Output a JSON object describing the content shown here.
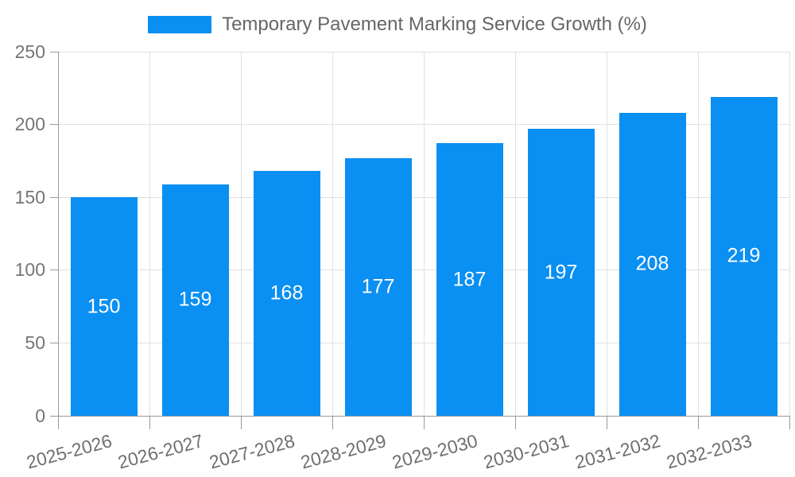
{
  "legend": {
    "label": "Temporary Pavement Marking Service Growth (%)"
  },
  "chart_data": {
    "type": "bar",
    "title": "Temporary Pavement Marking Service Growth (%)",
    "categories": [
      "2025-2026",
      "2026-2027",
      "2027-2028",
      "2028-2029",
      "2029-2030",
      "2030-2031",
      "2031-2032",
      "2032-2033"
    ],
    "values": [
      150,
      159,
      168,
      177,
      187,
      197,
      208,
      219
    ],
    "xlabel": "",
    "ylabel": "",
    "ylim": [
      0,
      250
    ],
    "yticks": [
      0,
      50,
      100,
      150,
      200,
      250
    ],
    "grid": true,
    "legend_position": "top-center",
    "x_label_rotation_deg": -15,
    "colors": {
      "bar": "#0A8FF2",
      "value_label": "#FFFFFF",
      "axis": "#999999",
      "grid": "#E0E0E0",
      "y_tick_label": "#757575",
      "x_tick_label": "#6F6F6F",
      "legend_text": "#666666"
    }
  }
}
